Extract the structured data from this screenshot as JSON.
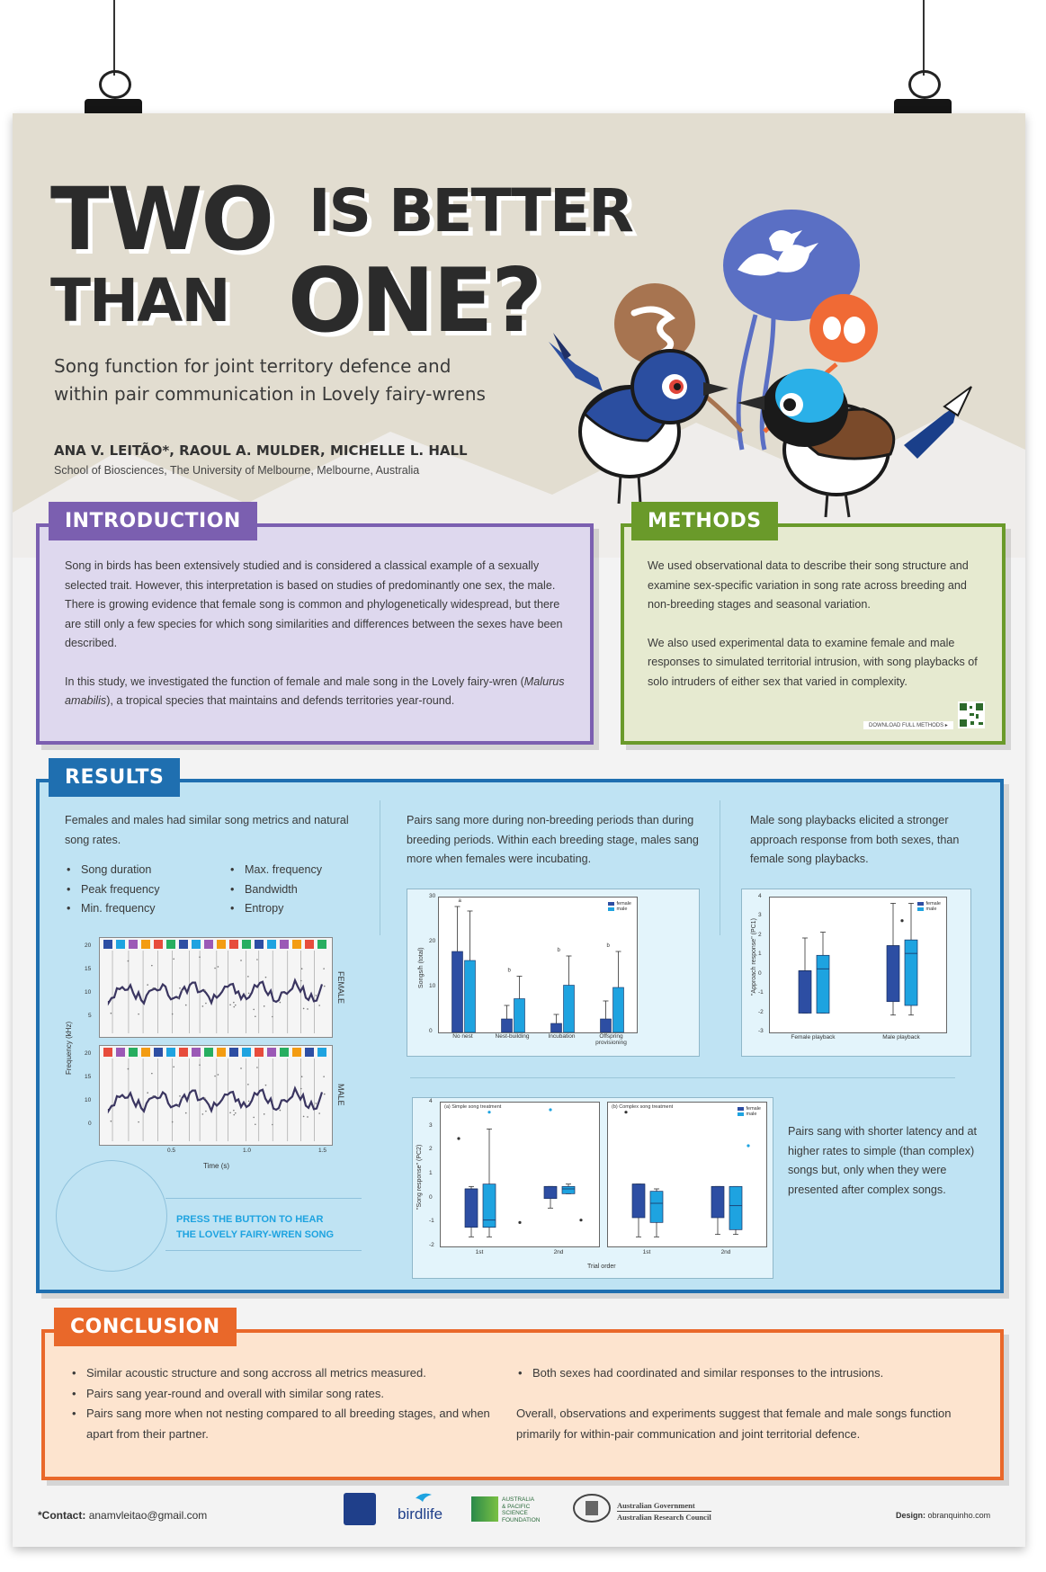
{
  "title": {
    "w1": "TWO",
    "w2": "IS BETTER",
    "w3": "THAN",
    "w4": "ONE?"
  },
  "subtitle": {
    "l1": "Song function for joint territory defence and",
    "l2": "within pair communication in Lovely fairy-wrens"
  },
  "authors": "ANA V. LEITÃO*, RAOUL A. MULDER, MICHELLE L. HALL",
  "affiliation": "School of Biosciences, The University of Melbourne, Melbourne, Australia",
  "colors": {
    "introduction": "#7b5fb0",
    "methods": "#6a9a2a",
    "results": "#1f6fb0",
    "conclusion": "#e9682a",
    "female": "#2d4ea3",
    "male": "#1ea3e0"
  },
  "introduction": {
    "heading": "INTRODUCTION",
    "p1": "Song in birds has been extensively studied and is considered a classical example of a sexually selected trait. However, this interpretation is based on studies of predominantly one sex, the male. There is growing evidence that female song is common and phylogenetically widespread, but there are still only a few species for which song similarities and differences between the sexes have been described.",
    "p2a": "In this study, we investigated the function of female and male song in the Lovely fairy-wren (",
    "p2b": "Malurus amabilis",
    "p2c": "), a tropical species that maintains and defends territories year-round."
  },
  "methods": {
    "heading": "METHODS",
    "p1": "We used observational data to describe their song structure and examine sex-specific variation in song rate across breeding and non-breeding stages and seasonal variation.",
    "p2": "We also used experimental data to examine female and male responses to simulated territorial intrusion, with song playbacks of solo intruders of either sex that varied in complexity.",
    "download": "DOWNLOAD FULL METHODS ▸"
  },
  "results": {
    "heading": "RESULTS",
    "col1_text": "Females and males had similar song metrics and natural song rates.",
    "metrics_left": [
      "Song duration",
      "Peak frequency",
      "Min. frequency"
    ],
    "metrics_right": [
      "Max. frequency",
      "Bandwidth",
      "Entropy"
    ],
    "spec_ylabel": "Frequency (kHz)",
    "spec_xlabel": "Time (s)",
    "spec_xticks": [
      "0.5",
      "1.0",
      "1.5"
    ],
    "spec_yticks_top": [
      "20",
      "15",
      "10",
      "5"
    ],
    "spec_yticks_bottom": [
      "20",
      "15",
      "10",
      "0"
    ],
    "spec_female": "FEMALE",
    "spec_male": "MALE",
    "press_l1": "PRESS THE BUTTON TO HEAR",
    "press_l2": "THE LOVELY FAIRY-WREN SONG",
    "col2_text": "Pairs sang more during non-breeding periods than during breeding periods.  Within each breeding stage, males sang more when females were incubating.",
    "col3_text": "Male song playbacks elicited a stronger approach response from both sexes, than female song playbacks.",
    "col4_text": "Pairs sang with shorter latency and at higher rates to simple (than complex) songs but, only when they were presented after complex songs."
  },
  "chart_data": [
    {
      "type": "bar",
      "ylabel": "Songs/h (total)",
      "ylim": [
        0,
        30
      ],
      "yticks": [
        "0",
        "10",
        "20",
        "30"
      ],
      "categories": [
        "No nest",
        "Nest-building",
        "Incubation",
        "Offspring provisioning"
      ],
      "category_labels": [
        "No nest",
        "Nest-building",
        "Incubation",
        "Offspring"
      ],
      "category_labels_2": [
        "",
        "",
        "",
        "provisioning"
      ],
      "letters": [
        "a",
        "b",
        "b",
        "b"
      ],
      "series": [
        {
          "name": "female",
          "values": [
            18,
            3,
            2,
            3
          ],
          "err_hi": [
            28,
            6,
            4,
            7
          ]
        },
        {
          "name": "male",
          "values": [
            16,
            7.5,
            10.5,
            10
          ],
          "err_hi": [
            27,
            12.5,
            17,
            18
          ]
        }
      ],
      "legend": [
        "female",
        "male"
      ],
      "legend_position": "top-right"
    },
    {
      "type": "box",
      "ylabel": "\"Approach response\" (PC1)",
      "ylim": [
        -3,
        4
      ],
      "yticks": [
        "4",
        "3",
        "2",
        "1",
        "0",
        "-1",
        "-2",
        "-3"
      ],
      "categories": [
        "Female playback",
        "Male playback"
      ],
      "series": [
        {
          "name": "female",
          "boxes": [
            {
              "min": -2,
              "q1": -2,
              "med": 0.2,
              "q3": 0.2,
              "max": 1.9
            },
            {
              "min": -2.1,
              "q1": -1.4,
              "med": 1.5,
              "q3": 1.5,
              "max": 3.7
            }
          ]
        },
        {
          "name": "male",
          "boxes": [
            {
              "min": -2,
              "q1": -2,
              "med": 0.3,
              "q3": 1,
              "max": 2.2
            },
            {
              "min": -2.1,
              "q1": -1.6,
              "med": 1.1,
              "q3": 1.8,
              "max": 3.7
            }
          ]
        }
      ],
      "outliers": [
        {
          "x": 1.5,
          "y": 2.8
        }
      ],
      "legend": [
        "female",
        "male"
      ],
      "legend_position": "top-right"
    },
    {
      "type": "box",
      "ylabel": "\"Song response\" (PC2)",
      "xlabel": "Trial order",
      "ylim": [
        -2,
        4
      ],
      "yticks": [
        "4",
        "3",
        "2",
        "1",
        "0",
        "-1",
        "-2"
      ],
      "panels": [
        {
          "title": "(a) Simple song treatment",
          "categories": [
            "1st",
            "2nd"
          ],
          "series": [
            {
              "name": "female",
              "boxes": [
                {
                  "min": -1.6,
                  "q1": -1.2,
                  "med": 0.4,
                  "q3": 0.4,
                  "max": 0.5
                },
                {
                  "min": -0.4,
                  "q1": 0,
                  "med": 0.5,
                  "q3": 0.5,
                  "max": 0.5
                }
              ]
            },
            {
              "name": "male",
              "boxes": [
                {
                  "min": -1.6,
                  "q1": -1.2,
                  "med": -0.9,
                  "q3": 0.6,
                  "max": 2.9
                },
                {
                  "min": 0.2,
                  "q1": 0.2,
                  "med": 0.4,
                  "q3": 0.5,
                  "max": 0.6
                }
              ]
            }
          ],
          "outliers": [
            {
              "y": 2.5
            },
            {
              "y": 3.6
            },
            {
              "y": -1
            },
            {
              "y": 3.7
            },
            {
              "y": -0.9
            }
          ]
        },
        {
          "title": "(b) Complex song treatment",
          "categories": [
            "1st",
            "2nd"
          ],
          "series": [
            {
              "name": "female",
              "boxes": [
                {
                  "min": -1.6,
                  "q1": -0.8,
                  "med": 0.6,
                  "q3": 0.6,
                  "max": 0.6
                },
                {
                  "min": -1.5,
                  "q1": -0.8,
                  "med": 0.5,
                  "q3": 0.5,
                  "max": 0.5
                }
              ]
            },
            {
              "name": "male",
              "boxes": [
                {
                  "min": -1.6,
                  "q1": -1,
                  "med": -0.2,
                  "q3": 0.3,
                  "max": 0.4
                },
                {
                  "min": -1.5,
                  "q1": -1.3,
                  "med": -0.3,
                  "q3": 0.5,
                  "max": 0.5
                }
              ]
            }
          ],
          "outliers": [
            {
              "y": 3.6
            },
            {
              "y": 2.2
            }
          ]
        }
      ],
      "legend": [
        "female",
        "male"
      ],
      "legend_position": "top-right"
    }
  ],
  "conclusion": {
    "heading": "CONCLUSION",
    "left": [
      "Similar acoustic structure and song accross all metrics measured.",
      "Pairs sang year-round and overall with similar song rates.",
      "Pairs sang more when not nesting compared to all breeding stages, and when apart from their partner."
    ],
    "right_bullet": "Both sexes had coordinated and similar responses to the intrusions.",
    "right_text": "Overall, observations and experiments suggest that female and male songs function primarily for within-pair communication and joint territorial defence."
  },
  "footer": {
    "contact_label": "*Contact:",
    "contact_email": "anamvleitao@gmail.com",
    "logo2": "birdlife",
    "logo3_l1": "AUSTRALIA",
    "logo3_l2": "& PACIFIC",
    "logo3_l3": "SCIENCE",
    "logo3_l4": "FOUNDATION",
    "logo4_l1": "Australian Government",
    "logo4_l2": "Australian Research Council",
    "design_label": "Design:",
    "design_value": "obranquinho.com"
  }
}
